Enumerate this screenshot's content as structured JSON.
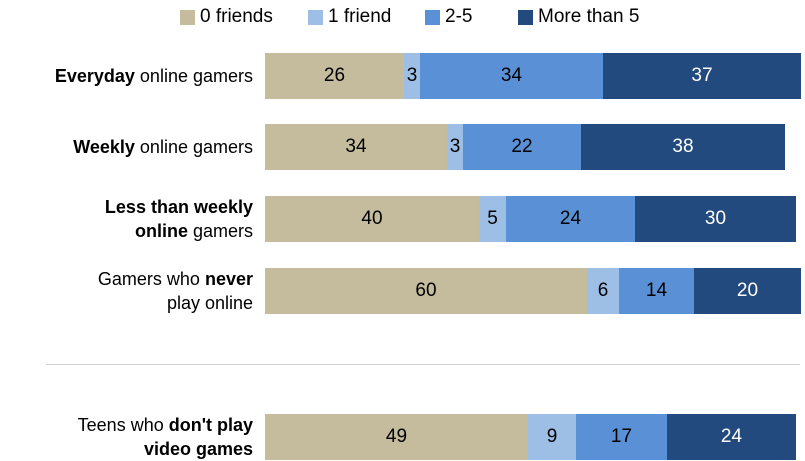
{
  "chart_data": {
    "type": "bar",
    "orientation": "horizontal",
    "stacked": true,
    "legend_position": "top",
    "categories": [
      {
        "parts": [
          {
            "text": "Everyday",
            "bold": true
          },
          {
            "text": " online gamers",
            "bold": false
          }
        ]
      },
      {
        "parts": [
          {
            "text": "Weekly",
            "bold": true
          },
          {
            "text": " online gamers",
            "bold": false
          }
        ]
      },
      {
        "parts": [
          {
            "text": "Less than weekly",
            "bold": true
          },
          {
            "text": "\n",
            "bold": false
          },
          {
            "text": "online",
            "bold": true
          },
          {
            "text": " gamers",
            "bold": false
          }
        ]
      },
      {
        "parts": [
          {
            "text": "Gamers who ",
            "bold": false
          },
          {
            "text": "never",
            "bold": true
          },
          {
            "text": "\nplay online",
            "bold": false
          }
        ]
      },
      {
        "parts": [
          {
            "text": "Teens who ",
            "bold": false
          },
          {
            "text": "don't play",
            "bold": true
          },
          {
            "text": "\n",
            "bold": false
          },
          {
            "text": "video games",
            "bold": true
          }
        ]
      }
    ],
    "series": [
      {
        "name": "0 friends",
        "color": "#c4bc9c",
        "values": [
          26,
          34,
          40,
          60,
          49
        ]
      },
      {
        "name": "1 friend",
        "color": "#9dbfe6",
        "values": [
          3,
          3,
          5,
          6,
          9
        ]
      },
      {
        "name": "2-5",
        "color": "#5a91d6",
        "values": [
          34,
          22,
          24,
          14,
          17
        ]
      },
      {
        "name": "More than 5",
        "color": "#234a7e",
        "values": [
          37,
          38,
          30,
          20,
          24
        ]
      }
    ],
    "label_colors": [
      "#000000",
      "#000000",
      "#000000",
      "#ffffff"
    ],
    "xlim": [
      0,
      100
    ],
    "grid": false
  }
}
